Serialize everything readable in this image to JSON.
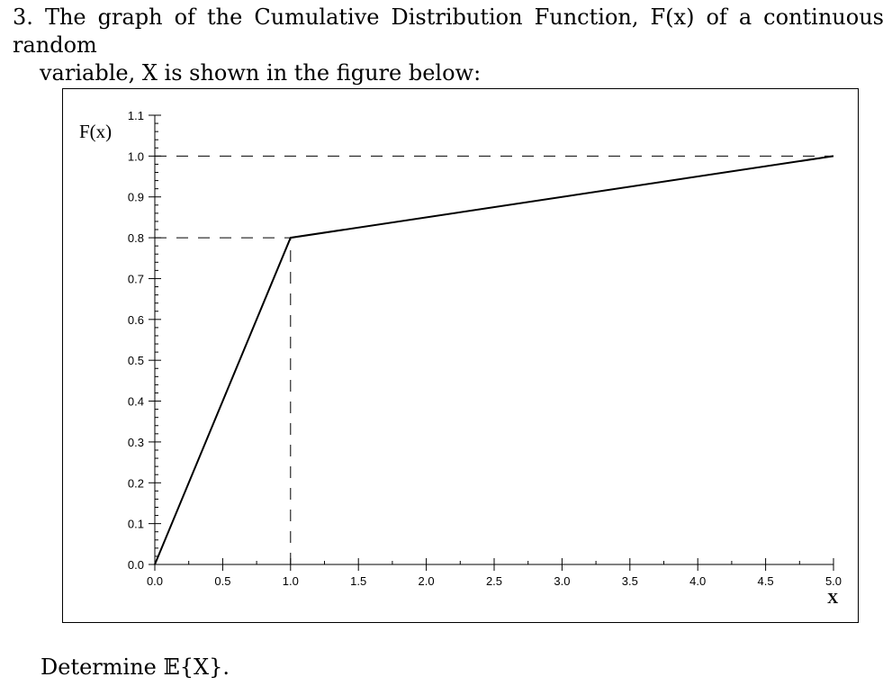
{
  "question": {
    "number": "3.",
    "text_line1": "The graph of the Cumulative Distribution Function, F(x) of a continuous random",
    "text_line2": "variable, X is shown in the figure below:"
  },
  "prompt": "Determine 𝔼{X}.",
  "chart_data": {
    "type": "line",
    "title": "",
    "xlabel": "X",
    "ylabel": "F(x)",
    "xlim": [
      0.0,
      5.0
    ],
    "ylim": [
      0.0,
      1.1
    ],
    "x_ticks": [
      "0.0",
      "0.5",
      "1.0",
      "1.5",
      "2.0",
      "2.5",
      "3.0",
      "3.5",
      "4.0",
      "4.5",
      "5.0"
    ],
    "y_ticks": [
      "0.0",
      "0.1",
      "0.2",
      "0.3",
      "0.4",
      "0.5",
      "0.6",
      "0.7",
      "0.8",
      "0.9",
      "1.0",
      "1.1"
    ],
    "grid": false,
    "series": [
      {
        "x": [
          0.0,
          1.0,
          5.0
        ],
        "y": [
          0.0,
          0.8,
          1.0
        ]
      }
    ],
    "reference_lines": [
      {
        "orientation": "horizontal",
        "y": 1.0,
        "x_from": 0.0,
        "x_to": 5.0,
        "style": "dashed"
      },
      {
        "orientation": "horizontal",
        "y": 0.8,
        "x_from": 0.0,
        "x_to": 1.0,
        "style": "dashed"
      },
      {
        "orientation": "vertical",
        "x": 1.0,
        "y_from": 0.0,
        "y_to": 0.8,
        "style": "dashed"
      }
    ]
  }
}
